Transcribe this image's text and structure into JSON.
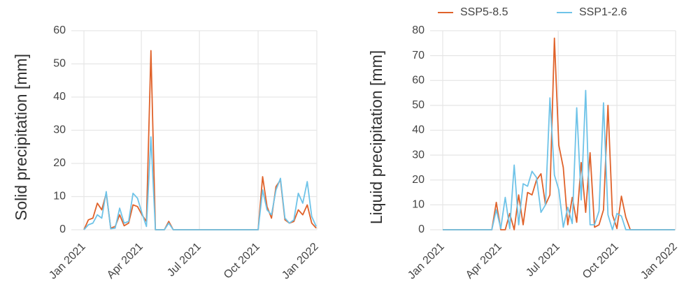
{
  "chart_data": [
    {
      "type": "line",
      "ylabel": "Solid precipitation [mm]",
      "x": [
        0,
        7,
        14,
        21,
        28,
        35,
        42,
        49,
        56,
        63,
        70,
        77,
        84,
        91,
        98,
        105,
        112,
        119,
        126,
        133,
        140,
        147,
        154,
        161,
        168,
        175,
        182,
        189,
        196,
        203,
        210,
        217,
        224,
        231,
        238,
        245,
        252,
        259,
        266,
        273,
        280,
        287,
        294,
        301,
        308,
        315,
        322,
        329,
        336,
        343,
        350,
        357,
        364
      ],
      "series": [
        {
          "color": "#e0622a",
          "values": [
            0,
            3,
            3.5,
            8,
            6,
            11,
            0.5,
            1,
            4.5,
            1.2,
            2,
            7.5,
            7,
            4.5,
            2.5,
            54,
            0,
            0,
            0,
            2.5,
            0,
            0,
            0,
            0,
            0,
            0,
            0,
            0,
            0,
            0,
            0,
            0,
            0,
            0,
            0,
            0,
            0,
            0,
            0,
            0,
            16,
            7,
            3.5,
            13,
            15,
            3,
            2,
            2.5,
            6,
            4.5,
            7.5,
            2,
            0.5
          ]
        },
        {
          "color": "#6ec3e8",
          "values": [
            0,
            1.5,
            2,
            4.5,
            3.5,
            11.5,
            0.3,
            0.5,
            6.5,
            2,
            2.5,
            11,
            9.5,
            5,
            1,
            28,
            0,
            0,
            0,
            2,
            0,
            0,
            0,
            0,
            0,
            0,
            0,
            0,
            0,
            0,
            0,
            0,
            0,
            0,
            0,
            0,
            0,
            0,
            0,
            0,
            12,
            6,
            4.5,
            12,
            15.5,
            3.5,
            2,
            3,
            11,
            8,
            14.5,
            4,
            1
          ]
        }
      ],
      "xlim": [
        0,
        365
      ],
      "xticks": [
        {
          "value": 0,
          "label": "Jan 2021"
        },
        {
          "value": 90,
          "label": "Apr 2021"
        },
        {
          "value": 181,
          "label": "Jul 2021"
        },
        {
          "value": 273,
          "label": "Oct 2021"
        },
        {
          "value": 365,
          "label": "Jan 2022"
        }
      ],
      "ylim": [
        0,
        60
      ],
      "yticks": [
        0,
        10,
        20,
        30,
        40,
        50,
        60
      ],
      "grid": true
    },
    {
      "type": "line",
      "ylabel": "Liquid precipitation [mm]",
      "x": [
        0,
        7,
        14,
        21,
        28,
        35,
        42,
        49,
        56,
        63,
        70,
        77,
        84,
        91,
        98,
        105,
        112,
        119,
        126,
        133,
        140,
        147,
        154,
        161,
        168,
        175,
        182,
        189,
        196,
        203,
        210,
        217,
        224,
        231,
        238,
        245,
        252,
        259,
        266,
        273,
        280,
        287,
        294,
        301,
        308,
        315,
        322,
        329,
        336,
        343,
        350,
        357,
        364
      ],
      "series": [
        {
          "name": "SSP5-8.5",
          "color": "#e0622a",
          "values": [
            0,
            0,
            0,
            0,
            0,
            0,
            0,
            0,
            0,
            0,
            0,
            0,
            11,
            0,
            0,
            6.5,
            0,
            14,
            2,
            15,
            14,
            20,
            22.5,
            10,
            14,
            77,
            34,
            25,
            2,
            13,
            3,
            27,
            7,
            31,
            1,
            2,
            8,
            50,
            6,
            0.5,
            13.5,
            5,
            0,
            0,
            0,
            0,
            0,
            0,
            0,
            0,
            0,
            0,
            0
          ]
        },
        {
          "name": "SSP1-2.6",
          "color": "#6ec3e8",
          "values": [
            0,
            0,
            0,
            0,
            0,
            0,
            0,
            0,
            0,
            0,
            0,
            0,
            8,
            0.5,
            13,
            0.5,
            26,
            2,
            18.5,
            17.5,
            23.5,
            21,
            7,
            10,
            53,
            22,
            16,
            1,
            9,
            2.5,
            49,
            12,
            56,
            2,
            2,
            7.5,
            51,
            6,
            0,
            6.5,
            5.5,
            0,
            0,
            0,
            0,
            0,
            0,
            0,
            0,
            0,
            0,
            0,
            0
          ]
        }
      ],
      "xlim": [
        0,
        365
      ],
      "xticks": [
        {
          "value": 0,
          "label": "Jan 2021"
        },
        {
          "value": 90,
          "label": "Apr 2021"
        },
        {
          "value": 181,
          "label": "Jul 2021"
        },
        {
          "value": 273,
          "label": "Oct 2021"
        },
        {
          "value": 365,
          "label": "Jan 2022"
        }
      ],
      "ylim": [
        0,
        80
      ],
      "yticks": [
        0,
        10,
        20,
        30,
        40,
        50,
        60,
        70,
        80
      ],
      "grid": true,
      "legend": "top-right"
    }
  ]
}
